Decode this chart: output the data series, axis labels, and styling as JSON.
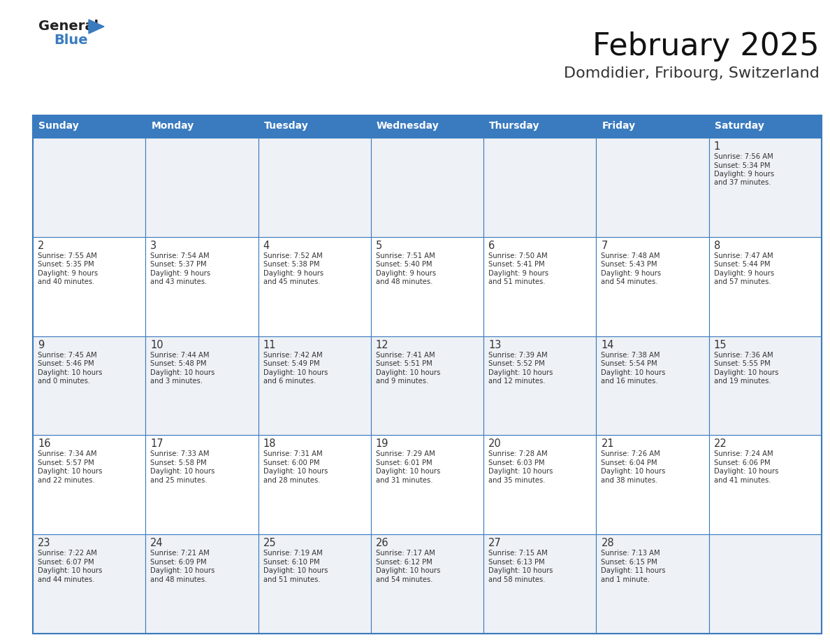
{
  "title": "February 2025",
  "subtitle": "Domdidier, Fribourg, Switzerland",
  "days_of_week": [
    "Sunday",
    "Monday",
    "Tuesday",
    "Wednesday",
    "Thursday",
    "Friday",
    "Saturday"
  ],
  "header_bg": "#3a7bbf",
  "header_text": "#ffffff",
  "cell_bg_even": "#eef1f5",
  "cell_bg_odd": "#ffffff",
  "border_color": "#3a7bbf",
  "day_number_color": "#333333",
  "text_color": "#333333",
  "logo_general_color": "#222222",
  "logo_blue_color": "#3a7bbf",
  "weeks": [
    [
      null,
      null,
      null,
      null,
      null,
      null,
      1
    ],
    [
      2,
      3,
      4,
      5,
      6,
      7,
      8
    ],
    [
      9,
      10,
      11,
      12,
      13,
      14,
      15
    ],
    [
      16,
      17,
      18,
      19,
      20,
      21,
      22
    ],
    [
      23,
      24,
      25,
      26,
      27,
      28,
      null
    ]
  ],
  "cell_data": {
    "1": {
      "sunrise": "7:56 AM",
      "sunset": "5:34 PM",
      "daylight_h": "9 hours",
      "daylight_m": "and 37 minutes."
    },
    "2": {
      "sunrise": "7:55 AM",
      "sunset": "5:35 PM",
      "daylight_h": "9 hours",
      "daylight_m": "and 40 minutes."
    },
    "3": {
      "sunrise": "7:54 AM",
      "sunset": "5:37 PM",
      "daylight_h": "9 hours",
      "daylight_m": "and 43 minutes."
    },
    "4": {
      "sunrise": "7:52 AM",
      "sunset": "5:38 PM",
      "daylight_h": "9 hours",
      "daylight_m": "and 45 minutes."
    },
    "5": {
      "sunrise": "7:51 AM",
      "sunset": "5:40 PM",
      "daylight_h": "9 hours",
      "daylight_m": "and 48 minutes."
    },
    "6": {
      "sunrise": "7:50 AM",
      "sunset": "5:41 PM",
      "daylight_h": "9 hours",
      "daylight_m": "and 51 minutes."
    },
    "7": {
      "sunrise": "7:48 AM",
      "sunset": "5:43 PM",
      "daylight_h": "9 hours",
      "daylight_m": "and 54 minutes."
    },
    "8": {
      "sunrise": "7:47 AM",
      "sunset": "5:44 PM",
      "daylight_h": "9 hours",
      "daylight_m": "and 57 minutes."
    },
    "9": {
      "sunrise": "7:45 AM",
      "sunset": "5:46 PM",
      "daylight_h": "10 hours",
      "daylight_m": "and 0 minutes."
    },
    "10": {
      "sunrise": "7:44 AM",
      "sunset": "5:48 PM",
      "daylight_h": "10 hours",
      "daylight_m": "and 3 minutes."
    },
    "11": {
      "sunrise": "7:42 AM",
      "sunset": "5:49 PM",
      "daylight_h": "10 hours",
      "daylight_m": "and 6 minutes."
    },
    "12": {
      "sunrise": "7:41 AM",
      "sunset": "5:51 PM",
      "daylight_h": "10 hours",
      "daylight_m": "and 9 minutes."
    },
    "13": {
      "sunrise": "7:39 AM",
      "sunset": "5:52 PM",
      "daylight_h": "10 hours",
      "daylight_m": "and 12 minutes."
    },
    "14": {
      "sunrise": "7:38 AM",
      "sunset": "5:54 PM",
      "daylight_h": "10 hours",
      "daylight_m": "and 16 minutes."
    },
    "15": {
      "sunrise": "7:36 AM",
      "sunset": "5:55 PM",
      "daylight_h": "10 hours",
      "daylight_m": "and 19 minutes."
    },
    "16": {
      "sunrise": "7:34 AM",
      "sunset": "5:57 PM",
      "daylight_h": "10 hours",
      "daylight_m": "and 22 minutes."
    },
    "17": {
      "sunrise": "7:33 AM",
      "sunset": "5:58 PM",
      "daylight_h": "10 hours",
      "daylight_m": "and 25 minutes."
    },
    "18": {
      "sunrise": "7:31 AM",
      "sunset": "6:00 PM",
      "daylight_h": "10 hours",
      "daylight_m": "and 28 minutes."
    },
    "19": {
      "sunrise": "7:29 AM",
      "sunset": "6:01 PM",
      "daylight_h": "10 hours",
      "daylight_m": "and 31 minutes."
    },
    "20": {
      "sunrise": "7:28 AM",
      "sunset": "6:03 PM",
      "daylight_h": "10 hours",
      "daylight_m": "and 35 minutes."
    },
    "21": {
      "sunrise": "7:26 AM",
      "sunset": "6:04 PM",
      "daylight_h": "10 hours",
      "daylight_m": "and 38 minutes."
    },
    "22": {
      "sunrise": "7:24 AM",
      "sunset": "6:06 PM",
      "daylight_h": "10 hours",
      "daylight_m": "and 41 minutes."
    },
    "23": {
      "sunrise": "7:22 AM",
      "sunset": "6:07 PM",
      "daylight_h": "10 hours",
      "daylight_m": "and 44 minutes."
    },
    "24": {
      "sunrise": "7:21 AM",
      "sunset": "6:09 PM",
      "daylight_h": "10 hours",
      "daylight_m": "and 48 minutes."
    },
    "25": {
      "sunrise": "7:19 AM",
      "sunset": "6:10 PM",
      "daylight_h": "10 hours",
      "daylight_m": "and 51 minutes."
    },
    "26": {
      "sunrise": "7:17 AM",
      "sunset": "6:12 PM",
      "daylight_h": "10 hours",
      "daylight_m": "and 54 minutes."
    },
    "27": {
      "sunrise": "7:15 AM",
      "sunset": "6:13 PM",
      "daylight_h": "10 hours",
      "daylight_m": "and 58 minutes."
    },
    "28": {
      "sunrise": "7:13 AM",
      "sunset": "6:15 PM",
      "daylight_h": "11 hours",
      "daylight_m": "and 1 minute."
    }
  }
}
